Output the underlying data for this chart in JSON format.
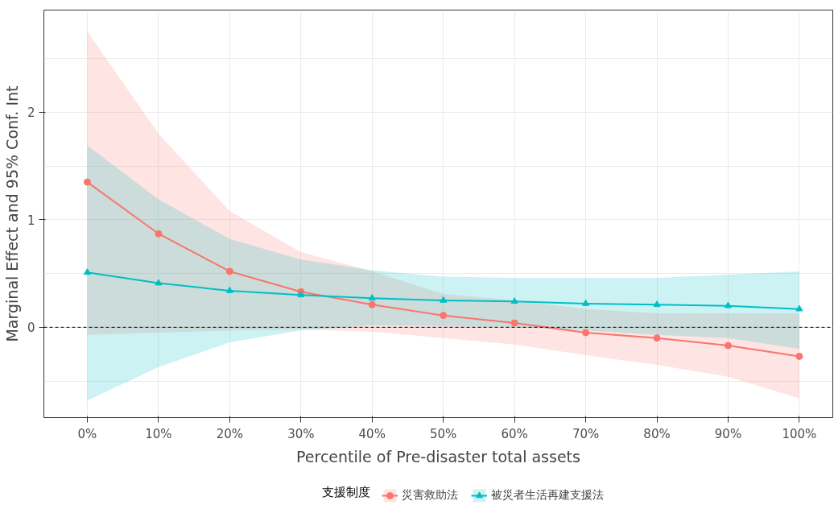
{
  "chart_data": {
    "type": "line",
    "xlabel": "Percentile of Pre-disaster total assets",
    "ylabel": "Marginal Effect and 95% Conf. Int",
    "legend_title": "支援制度",
    "x": [
      0,
      10,
      20,
      30,
      40,
      50,
      60,
      70,
      80,
      90,
      100
    ],
    "xlim": [
      -6.1,
      104.7
    ],
    "xticks": [
      {
        "value": 0,
        "label": "0%"
      },
      {
        "value": 10,
        "label": "10%"
      },
      {
        "value": 20,
        "label": "20%"
      },
      {
        "value": 30,
        "label": "30%"
      },
      {
        "value": 40,
        "label": "40%"
      },
      {
        "value": 50,
        "label": "50%"
      },
      {
        "value": 60,
        "label": "60%"
      },
      {
        "value": 70,
        "label": "70%"
      },
      {
        "value": 80,
        "label": "80%"
      },
      {
        "value": 90,
        "label": "90%"
      },
      {
        "value": 100,
        "label": "100%"
      }
    ],
    "ylim": [
      -0.84,
      2.95
    ],
    "yticks": [
      0,
      1,
      2
    ],
    "grid": true,
    "legend": "bottom",
    "ref_lines": [
      {
        "axis": "y",
        "value": 0,
        "color": "#000000",
        "line_style": "dashed"
      }
    ],
    "series": [
      {
        "name": "災害救助法",
        "color": "#f8766d",
        "marker": "circle",
        "values": [
          1.35,
          0.87,
          0.52,
          0.33,
          0.21,
          0.11,
          0.04,
          -0.05,
          -0.1,
          -0.17,
          -0.27
        ],
        "lower": [
          -0.07,
          -0.05,
          -0.03,
          -0.02,
          -0.04,
          -0.1,
          -0.16,
          -0.26,
          -0.35,
          -0.46,
          -0.66
        ],
        "upper": [
          2.75,
          1.8,
          1.08,
          0.7,
          0.52,
          0.31,
          0.25,
          0.17,
          0.13,
          0.13,
          0.13
        ]
      },
      {
        "name": "被災者生活再建支援法",
        "color": "#00bfc4",
        "marker": "triangle",
        "values": [
          0.51,
          0.41,
          0.34,
          0.3,
          0.27,
          0.25,
          0.24,
          0.22,
          0.21,
          0.2,
          0.17
        ],
        "lower": [
          -0.68,
          -0.37,
          -0.14,
          -0.03,
          0.02,
          0.01,
          0.0,
          -0.03,
          -0.07,
          -0.1,
          -0.2
        ],
        "upper": [
          1.69,
          1.19,
          0.82,
          0.63,
          0.53,
          0.47,
          0.46,
          0.46,
          0.46,
          0.49,
          0.52
        ]
      }
    ]
  }
}
